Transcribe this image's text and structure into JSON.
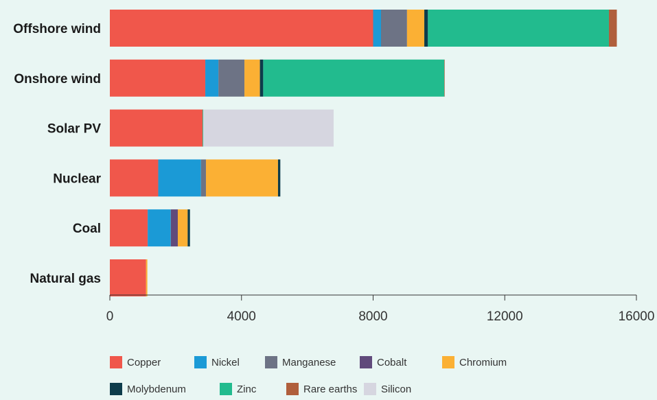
{
  "chart_data": {
    "type": "bar",
    "orientation": "horizontal",
    "stacked": true,
    "title": "",
    "xlabel": "",
    "ylabel": "",
    "categories": [
      "Offshore wind",
      "Onshore wind",
      "Solar PV",
      "Nuclear",
      "Coal",
      "Natural gas"
    ],
    "xlim": [
      0,
      16000
    ],
    "xticks": [
      0,
      4000,
      8000,
      12000,
      16000
    ],
    "xtick_labels": [
      "0",
      "4000",
      "8000",
      "12000",
      "16000"
    ],
    "grid": false,
    "legend_position": "bottom",
    "series": [
      {
        "name": "Copper",
        "color": "#f0574b",
        "values": [
          8000,
          2900,
          2820,
          1470,
          1150,
          1100
        ]
      },
      {
        "name": "Nickel",
        "color": "#1b9ad6",
        "values": [
          240,
          400,
          0,
          1300,
          700,
          0
        ]
      },
      {
        "name": "Manganese",
        "color": "#6d7385",
        "values": [
          790,
          790,
          0,
          150,
          5,
          0
        ]
      },
      {
        "name": "Cobalt",
        "color": "#604a7b",
        "values": [
          0,
          0,
          0,
          0,
          210,
          0
        ]
      },
      {
        "name": "Chromium",
        "color": "#fbb034",
        "values": [
          525,
          470,
          0,
          2190,
          300,
          40
        ]
      },
      {
        "name": "Molybdenum",
        "color": "#0d3c4b",
        "values": [
          110,
          100,
          0,
          70,
          70,
          0
        ]
      },
      {
        "name": "Zinc",
        "color": "#22bb8e",
        "values": [
          5500,
          5500,
          20,
          0,
          0,
          0
        ]
      },
      {
        "name": "Rare earths",
        "color": "#b05f3c",
        "values": [
          240,
          14,
          0,
          0,
          0,
          0
        ]
      },
      {
        "name": "Silicon",
        "color": "#d6d6e0",
        "values": [
          0,
          0,
          3960,
          0,
          0,
          0
        ]
      }
    ]
  }
}
